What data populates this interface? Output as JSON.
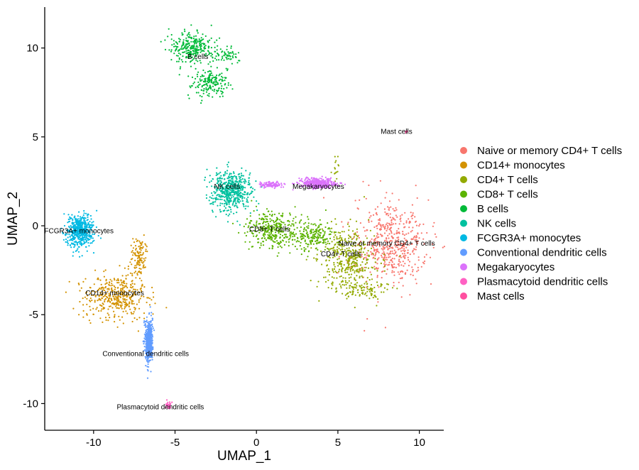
{
  "chart_data": {
    "type": "scatter",
    "xlabel": "UMAP_1",
    "ylabel": "UMAP_2",
    "xlim": [
      -13,
      11.5
    ],
    "ylim": [
      -11.5,
      12.3
    ],
    "x_ticks": [
      -10,
      -5,
      0,
      5,
      10
    ],
    "y_ticks": [
      -10,
      -5,
      0,
      5,
      10
    ],
    "grid": false,
    "legend_position": "right",
    "series": [
      {
        "name": "Naive or memory CD4+ T cells",
        "color": "#F8766D",
        "label": "Naive or memory CD4+ T cells",
        "label_pos": [
          8.0,
          -1.0
        ],
        "blobs": [
          {
            "center": [
              8.3,
              -1.0
            ],
            "radius": [
              2.4,
              2.6
            ],
            "weight": 1.0
          }
        ]
      },
      {
        "name": "CD14+ monocytes",
        "color": "#D39200",
        "label": "CD14+ monocytes",
        "label_pos": [
          -8.7,
          -3.8
        ],
        "blobs": [
          {
            "center": [
              -8.6,
              -3.9
            ],
            "radius": [
              2.2,
              1.5
            ],
            "weight": 1.0
          },
          {
            "center": [
              -7.2,
              -1.8
            ],
            "radius": [
              0.6,
              1.1
            ],
            "weight": 0.25
          }
        ]
      },
      {
        "name": "CD4+ T cells",
        "color": "#93AA00",
        "label": "CD4+ T cells",
        "label_pos": [
          5.2,
          -1.6
        ],
        "blobs": [
          {
            "center": [
              5.6,
              -1.9
            ],
            "radius": [
              1.9,
              2.0
            ],
            "weight": 1.0
          },
          {
            "center": [
              4.9,
              3.1
            ],
            "radius": [
              0.3,
              1.1
            ],
            "weight": 0.06
          },
          {
            "center": [
              6.7,
              -3.6
            ],
            "radius": [
              1.6,
              0.5
            ],
            "weight": 0.2
          }
        ]
      },
      {
        "name": "CD8+ T cells",
        "color": "#5BB300",
        "label": "CD8+ T cells",
        "label_pos": [
          0.8,
          -0.2
        ],
        "blobs": [
          {
            "center": [
              1.0,
              -0.2
            ],
            "radius": [
              2.0,
              1.1
            ],
            "weight": 1.0
          },
          {
            "center": [
              3.6,
              -0.6
            ],
            "radius": [
              1.2,
              0.9
            ],
            "weight": 0.4
          }
        ]
      },
      {
        "name": "B cells",
        "color": "#00BA38",
        "label": "B cells",
        "label_pos": [
          -3.6,
          9.5
        ],
        "blobs": [
          {
            "center": [
              -4.0,
              10.0
            ],
            "radius": [
              1.5,
              1.0
            ],
            "weight": 1.0
          },
          {
            "center": [
              -2.8,
              8.0
            ],
            "radius": [
              1.2,
              0.8
            ],
            "weight": 0.6
          },
          {
            "center": [
              -2.0,
              9.6
            ],
            "radius": [
              1.1,
              0.6
            ],
            "weight": 0.3
          }
        ]
      },
      {
        "name": "NK cells",
        "color": "#00C19F",
        "label": "NK cells",
        "label_pos": [
          -1.8,
          2.2
        ],
        "blobs": [
          {
            "center": [
              -1.6,
              2.0
            ],
            "radius": [
              1.4,
              1.2
            ],
            "weight": 1.0
          }
        ]
      },
      {
        "name": "FCGR3A+ monocytes",
        "color": "#00B9E3",
        "label": "FCGR3A+ monocytes",
        "label_pos": [
          -10.9,
          -0.3
        ],
        "blobs": [
          {
            "center": [
              -10.8,
              -0.3
            ],
            "radius": [
              0.9,
              1.0
            ],
            "weight": 1.0
          }
        ]
      },
      {
        "name": "Conventional dendritic cells",
        "color": "#619CFF",
        "label": "Conventional dendritic cells",
        "label_pos": [
          -6.8,
          -7.2
        ],
        "blobs": [
          {
            "center": [
              -6.6,
              -6.5
            ],
            "radius": [
              0.25,
              1.3
            ],
            "weight": 1.0
          }
        ]
      },
      {
        "name": "Megakaryocytes",
        "color": "#DB72FB",
        "label": "Megakaryocytes",
        "label_pos": [
          3.8,
          2.2
        ],
        "blobs": [
          {
            "center": [
              3.8,
              2.4
            ],
            "radius": [
              1.2,
              0.3
            ],
            "weight": 1.0
          },
          {
            "center": [
              0.9,
              2.3
            ],
            "radius": [
              0.8,
              0.15
            ],
            "weight": 0.3
          }
        ]
      },
      {
        "name": "Plasmacytoid dendritic cells",
        "color": "#FF61C3",
        "label": "Plasmacytoid dendritic cells",
        "label_pos": [
          -5.9,
          -10.2
        ],
        "blobs": [
          {
            "center": [
              -5.4,
              -10.1
            ],
            "radius": [
              0.2,
              0.25
            ],
            "weight": 1.0
          }
        ]
      },
      {
        "name": "Mast cells",
        "color": "#FF4FA0",
        "label": "Mast cells",
        "label_pos": [
          8.6,
          5.3
        ],
        "blobs": [
          {
            "center": [
              9.2,
              5.3
            ],
            "radius": [
              0.08,
              0.08
            ],
            "weight": 1.0
          }
        ]
      }
    ]
  }
}
